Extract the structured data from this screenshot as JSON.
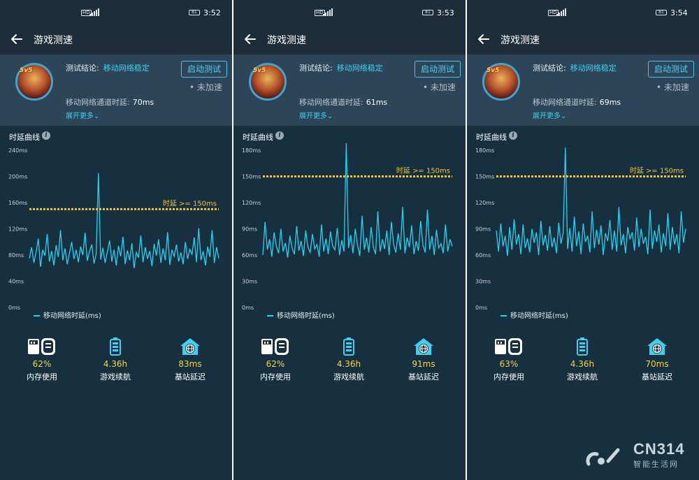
{
  "colors": {
    "accent": "#3ed0ef",
    "curve": "#25d2f2",
    "threshold": "#f4c430",
    "value": "#f4d34a",
    "background": "#16303f"
  },
  "panels": [
    {
      "status_time": "3:52",
      "title": "游戏测速",
      "conclusion_label": "测试结论:",
      "conclusion_value": "移动网络稳定",
      "start_button": "启动测试",
      "accel_status": "• 未加速",
      "latency_label": "移动网络通道时延:",
      "latency_value": "70ms",
      "expand": "展开更多",
      "chart_title": "时延曲线",
      "legend": "移动网络时延(ms)",
      "stats": [
        {
          "icon": "memory-clean-icon",
          "value": "62%",
          "label": "内存使用"
        },
        {
          "icon": "battery-icon",
          "value": "4.36h",
          "label": "游戏续航"
        },
        {
          "icon": "base-station-icon",
          "value": "83ms",
          "label": "基站延迟"
        }
      ],
      "chart_data": {
        "type": "line",
        "ylim": [
          0,
          240
        ],
        "yticks": [
          "0ms",
          "40ms",
          "80ms",
          "120ms",
          "160ms",
          "200ms",
          "240ms"
        ],
        "threshold": 150,
        "threshold_label": "时延 >= 150ms",
        "series": [
          {
            "name": "移动网络时延(ms)",
            "values": [
              75,
              92,
              68,
              84,
              105,
              62,
              88,
              79,
              112,
              70,
              86,
              64,
              95,
              77,
              118,
              72,
              90,
              66,
              83,
              100,
              74,
              88,
              69,
              93,
              80,
              114,
              71,
              86,
              96,
              67,
              82,
              205,
              73,
              91,
              68,
              85,
              102,
              70,
              88,
              64,
              94,
              78,
              108,
              66,
              87,
              72,
              98,
              60,
              84,
              76,
              110,
              69,
              92,
              74,
              86,
              63,
              97,
              79,
              104,
              68,
              90,
              72,
              115,
              65,
              88,
              78,
              96,
              70,
              84,
              66,
              100,
              74,
              89,
              81,
              107,
              69,
              121,
              72,
              86,
              64,
              93,
              77,
              118,
              68,
              92,
              75
            ]
          }
        ]
      }
    },
    {
      "status_time": "3:53",
      "title": "游戏测速",
      "conclusion_label": "测试结论:",
      "conclusion_value": "移动网络稳定",
      "start_button": "启动测试",
      "accel_status": "• 未加速",
      "latency_label": "移动网络通道时延:",
      "latency_value": "61ms",
      "expand": "展开更多",
      "chart_title": "时延曲线",
      "legend": "移动网络时延(ms)",
      "stats": [
        {
          "icon": "memory-clean-icon",
          "value": "62%",
          "label": "内存使用"
        },
        {
          "icon": "battery-icon",
          "value": "4.36h",
          "label": "游戏续航"
        },
        {
          "icon": "base-station-icon",
          "value": "91ms",
          "label": "基站延迟"
        }
      ],
      "chart_data": {
        "type": "line",
        "ylim": [
          0,
          180
        ],
        "yticks": [
          "0ms",
          "30ms",
          "60ms",
          "90ms",
          "120ms",
          "150ms",
          "180ms"
        ],
        "threshold": 150,
        "threshold_label": "时延 >= 150ms",
        "series": [
          {
            "name": "移动网络时延(ms)",
            "values": [
              60,
              98,
              66,
              78,
              58,
              86,
              70,
              62,
              90,
              64,
              74,
              57,
              82,
              68,
              61,
              93,
              65,
              76,
              59,
              88,
              69,
              63,
              84,
              67,
              72,
              58,
              95,
              64,
              79,
              61,
              87,
              70,
              66,
              91,
              60,
              77,
              64,
              188,
              68,
              83,
              62,
              90,
              71,
              59,
              105,
              66,
              80,
              63,
              92,
              69,
              61,
              110,
              64,
              78,
              67,
              88,
              60,
              98,
              72,
              63,
              85,
              66,
              115,
              62,
              80,
              69,
              94,
              61,
              76,
              65,
              99,
              71,
              63,
              112,
              66,
              82,
              60,
              89,
              68,
              73,
              62,
              95,
              64,
              78,
              70
            ]
          }
        ]
      }
    },
    {
      "status_time": "3:54",
      "title": "游戏测速",
      "conclusion_label": "测试结论:",
      "conclusion_value": "移动网络稳定",
      "start_button": "启动测试",
      "accel_status": "• 未加速",
      "latency_label": "移动网络通道时延:",
      "latency_value": "69ms",
      "expand": "展开更多",
      "chart_title": "时延曲线",
      "legend": "移动网络时延(ms)",
      "stats": [
        {
          "icon": "memory-clean-icon",
          "value": "63%",
          "label": "内存使用"
        },
        {
          "icon": "battery-icon",
          "value": "4.36h",
          "label": "游戏续航"
        },
        {
          "icon": "base-station-icon",
          "value": "70ms",
          "label": "基站延迟"
        }
      ],
      "chart_data": {
        "type": "line",
        "ylim": [
          0,
          180
        ],
        "yticks": [
          "0ms",
          "30ms",
          "60ms",
          "90ms",
          "120ms",
          "150ms",
          "180ms"
        ],
        "threshold": 150,
        "threshold_label": "时延 >= 150ms",
        "series": [
          {
            "name": "移动网络时延(ms)",
            "values": [
              88,
              64,
              96,
              70,
              82,
              59,
              92,
              66,
              101,
              72,
              84,
              61,
              95,
              68,
              79,
              63,
              90,
              74,
              86,
              60,
              99,
              71,
              83,
              65,
              93,
              69,
              80,
              62,
              97,
              73,
              85,
              183,
              67,
              91,
              64,
              104,
              70,
              87,
              61,
              96,
              75,
              82,
              63,
              110,
              68,
              89,
              72,
              94,
              60,
              85,
              76,
              100,
              66,
              88,
              64,
              115,
              71,
              84,
              62,
              92,
              78,
              86,
              65,
              103,
              69,
              90,
              73,
              81,
              61,
              112,
              67,
              88,
              75,
              95,
              63,
              85,
              70,
              108,
              66,
              92,
              72,
              84,
              62,
              110,
              74,
              90
            ]
          }
        ]
      }
    }
  ],
  "watermark": {
    "brand": "CN314",
    "sub": "智能生活网"
  }
}
